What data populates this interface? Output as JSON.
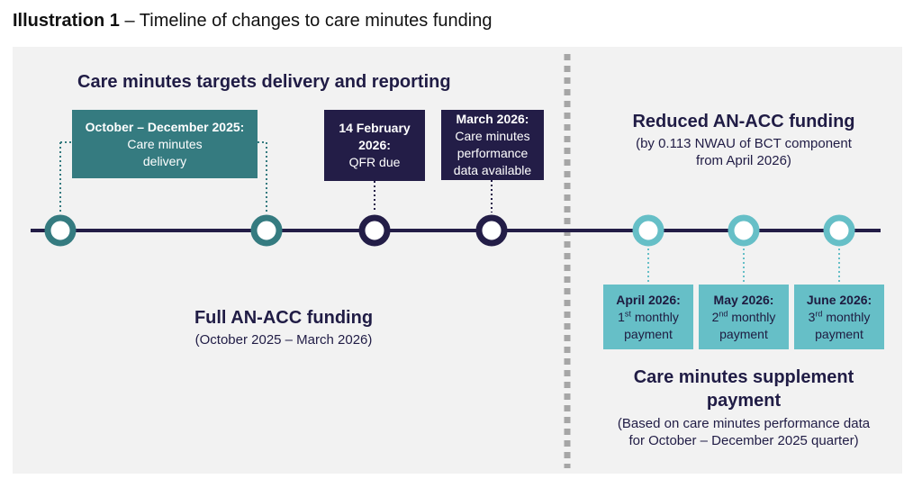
{
  "caption": {
    "bold": "Illustration 1",
    "rest": " – Timeline of changes to care minutes funding"
  },
  "left": {
    "heading": "Care minutes targets delivery and reporting",
    "box1": {
      "title": "October – December 2025:",
      "lines": [
        "Care minutes",
        "delivery"
      ]
    },
    "box2": {
      "title_lines": [
        "14 February",
        "2026:"
      ],
      "lines": [
        "QFR due"
      ]
    },
    "box3": {
      "title": "March 2026:",
      "lines": [
        "Care minutes",
        "performance",
        "data available"
      ]
    },
    "funding_title": "Full AN-ACC funding",
    "funding_sub": "(October 2025 – March 2026)"
  },
  "right": {
    "heading": "Reduced AN-ACC funding",
    "sub_lines": [
      "(by 0.113 NWAU of BCT component",
      "from April 2026)"
    ],
    "payments": [
      {
        "title": "April 2026:",
        "ord": "1",
        "sup": "st",
        "rest": " monthly",
        "line3": "payment"
      },
      {
        "title": "May 2026:",
        "ord": "2",
        "sup": "nd",
        "rest": " monthly",
        "line3": "payment"
      },
      {
        "title": "June 2026:",
        "ord": "3",
        "sup": "rd",
        "rest": " monthly",
        "line3": "payment"
      }
    ],
    "supplement_lines": [
      "Care minutes supplement",
      "payment"
    ],
    "supplement_sub_lines": [
      "(Based on care minutes performance data",
      "for October – December 2025 quarter)"
    ]
  },
  "colors": {
    "navy": "#231d47",
    "dark_teal": "#357b80",
    "light_teal": "#66bfc7",
    "panel": "#f2f2f2",
    "divider": "#a6a6a6"
  }
}
